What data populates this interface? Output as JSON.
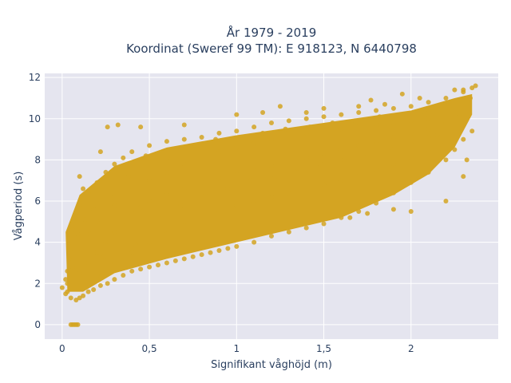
{
  "chart_data": {
    "type": "scatter",
    "title_line1": "År 1979 - 2019",
    "title_line2": "Koordinat (Sweref 99 TM): E 918123, N 6440798",
    "xlabel": "Signifikant våghöjd (m)",
    "ylabel": "Vågperiod (s)",
    "xlim": [
      -0.1,
      2.5
    ],
    "ylim": [
      -0.7,
      12.2
    ],
    "x_ticks": [
      {
        "value": 0,
        "label": "0"
      },
      {
        "value": 0.5,
        "label": "0,5"
      },
      {
        "value": 1,
        "label": "1"
      },
      {
        "value": 1.5,
        "label": "1,5"
      },
      {
        "value": 2,
        "label": "2"
      }
    ],
    "y_ticks": [
      {
        "value": 0,
        "label": "0"
      },
      {
        "value": 2,
        "label": "2"
      },
      {
        "value": 4,
        "label": "4"
      },
      {
        "value": 6,
        "label": "6"
      },
      {
        "value": 8,
        "label": "8"
      },
      {
        "value": 10,
        "label": "10"
      },
      {
        "value": 12,
        "label": "12"
      }
    ],
    "grid": true,
    "marker_color": "#d4a422",
    "background_color": "#e5e5ef",
    "series": [
      {
        "points": [
          [
            0.05,
            0.0
          ],
          [
            0.06,
            0.0
          ],
          [
            0.07,
            0.0
          ],
          [
            0.08,
            0.0
          ],
          [
            0.09,
            0.0
          ],
          [
            0.03,
            1.6
          ],
          [
            0.05,
            1.3
          ],
          [
            0.08,
            1.2
          ],
          [
            0.1,
            1.3
          ],
          [
            0.12,
            1.4
          ],
          [
            0.15,
            1.6
          ],
          [
            0.18,
            1.7
          ],
          [
            0.22,
            1.9
          ],
          [
            0.26,
            2.0
          ],
          [
            0.3,
            2.2
          ],
          [
            0.35,
            2.4
          ],
          [
            0.4,
            2.6
          ],
          [
            0.45,
            2.7
          ],
          [
            0.5,
            2.8
          ],
          [
            0.55,
            2.9
          ],
          [
            0.6,
            3.0
          ],
          [
            0.65,
            3.1
          ],
          [
            0.7,
            3.2
          ],
          [
            0.75,
            3.3
          ],
          [
            0.8,
            3.4
          ],
          [
            0.85,
            3.5
          ],
          [
            0.9,
            3.6
          ],
          [
            0.95,
            3.7
          ],
          [
            1.0,
            3.8
          ],
          [
            1.1,
            4.0
          ],
          [
            1.2,
            4.3
          ],
          [
            1.3,
            4.5
          ],
          [
            1.4,
            4.7
          ],
          [
            1.5,
            4.9
          ],
          [
            1.6,
            5.2
          ],
          [
            1.7,
            5.5
          ],
          [
            1.8,
            5.9
          ],
          [
            1.9,
            6.4
          ],
          [
            2.0,
            6.9
          ],
          [
            2.1,
            7.4
          ],
          [
            2.2,
            8.0
          ],
          [
            2.25,
            8.5
          ],
          [
            2.3,
            9.0
          ],
          [
            0.03,
            2.0
          ],
          [
            0.03,
            2.6
          ],
          [
            0.04,
            3.2
          ],
          [
            0.04,
            3.8
          ],
          [
            0.05,
            4.2
          ],
          [
            0.06,
            4.6
          ],
          [
            0.07,
            5.0
          ],
          [
            0.08,
            5.3
          ],
          [
            0.1,
            5.8
          ],
          [
            0.12,
            6.1
          ],
          [
            0.15,
            6.4
          ],
          [
            0.2,
            6.9
          ],
          [
            0.25,
            7.4
          ],
          [
            0.3,
            7.8
          ],
          [
            0.35,
            8.1
          ],
          [
            0.4,
            8.4
          ],
          [
            0.5,
            8.7
          ],
          [
            0.6,
            8.9
          ],
          [
            0.7,
            9.0
          ],
          [
            0.8,
            9.1
          ],
          [
            0.9,
            9.3
          ],
          [
            1.0,
            9.4
          ],
          [
            1.1,
            9.6
          ],
          [
            1.2,
            9.8
          ],
          [
            1.3,
            9.9
          ],
          [
            1.4,
            10.0
          ],
          [
            1.5,
            10.1
          ],
          [
            1.6,
            10.2
          ],
          [
            1.7,
            10.3
          ],
          [
            1.8,
            10.4
          ],
          [
            1.9,
            10.5
          ],
          [
            2.0,
            10.6
          ],
          [
            2.1,
            10.8
          ],
          [
            2.2,
            11.0
          ],
          [
            2.3,
            11.3
          ],
          [
            2.35,
            11.5
          ],
          [
            0.1,
            2.5
          ],
          [
            0.15,
            3.0
          ],
          [
            0.2,
            3.5
          ],
          [
            0.25,
            4.0
          ],
          [
            0.3,
            4.5
          ],
          [
            0.35,
            5.0
          ],
          [
            0.4,
            5.4
          ],
          [
            0.45,
            5.7
          ],
          [
            0.5,
            6.0
          ],
          [
            0.6,
            6.3
          ],
          [
            0.7,
            6.6
          ],
          [
            0.8,
            6.9
          ],
          [
            0.9,
            7.1
          ],
          [
            1.0,
            7.3
          ],
          [
            1.1,
            7.5
          ],
          [
            1.2,
            7.7
          ],
          [
            1.3,
            7.9
          ],
          [
            1.4,
            8.1
          ],
          [
            1.5,
            8.3
          ],
          [
            1.6,
            8.5
          ],
          [
            1.7,
            8.7
          ],
          [
            1.8,
            8.9
          ],
          [
            1.9,
            9.1
          ],
          [
            2.0,
            9.3
          ],
          [
            2.1,
            9.5
          ],
          [
            2.2,
            9.8
          ],
          [
            0.2,
            5.0
          ],
          [
            0.3,
            5.8
          ],
          [
            0.4,
            6.5
          ],
          [
            0.5,
            7.0
          ],
          [
            0.6,
            7.4
          ],
          [
            0.7,
            7.8
          ],
          [
            0.8,
            8.1
          ],
          [
            0.9,
            8.4
          ],
          [
            1.0,
            8.6
          ],
          [
            1.1,
            8.8
          ],
          [
            1.2,
            9.0
          ],
          [
            1.3,
            9.2
          ],
          [
            1.4,
            9.3
          ],
          [
            1.5,
            9.4
          ],
          [
            1.6,
            9.5
          ],
          [
            1.7,
            9.6
          ],
          [
            1.8,
            9.7
          ],
          [
            1.9,
            9.8
          ],
          [
            2.0,
            9.9
          ],
          [
            2.1,
            10.0
          ],
          [
            0.2,
            2.4
          ],
          [
            0.3,
            3.0
          ],
          [
            0.4,
            3.5
          ],
          [
            0.5,
            4.0
          ],
          [
            0.6,
            4.4
          ],
          [
            0.7,
            4.8
          ],
          [
            0.8,
            5.2
          ],
          [
            0.9,
            5.5
          ],
          [
            1.0,
            5.8
          ],
          [
            1.1,
            6.0
          ],
          [
            1.2,
            6.2
          ],
          [
            1.3,
            6.4
          ],
          [
            1.4,
            6.6
          ],
          [
            1.5,
            6.8
          ],
          [
            1.6,
            7.0
          ],
          [
            1.7,
            7.2
          ],
          [
            1.8,
            7.5
          ],
          [
            1.9,
            7.8
          ],
          [
            2.0,
            8.1
          ],
          [
            2.1,
            8.5
          ],
          [
            0.26,
            9.6
          ],
          [
            0.32,
            9.7
          ],
          [
            0.45,
            9.6
          ],
          [
            0.7,
            9.7
          ],
          [
            1.0,
            10.2
          ],
          [
            1.15,
            10.3
          ],
          [
            1.25,
            10.6
          ],
          [
            1.4,
            10.3
          ],
          [
            1.5,
            10.5
          ],
          [
            1.7,
            10.6
          ],
          [
            1.77,
            10.9
          ],
          [
            1.85,
            10.7
          ],
          [
            1.95,
            11.2
          ],
          [
            2.05,
            11.0
          ],
          [
            2.25,
            11.4
          ],
          [
            2.3,
            11.4
          ],
          [
            2.37,
            11.6
          ],
          [
            0.12,
            6.6
          ],
          [
            0.1,
            7.2
          ],
          [
            0.22,
            8.4
          ],
          [
            1.65,
            5.2
          ],
          [
            1.75,
            5.4
          ],
          [
            1.9,
            5.6
          ],
          [
            2.0,
            5.5
          ],
          [
            2.2,
            6.0
          ],
          [
            2.3,
            7.2
          ],
          [
            2.32,
            8.0
          ],
          [
            2.35,
            9.4
          ],
          [
            2.1,
            9.1
          ],
          [
            2.18,
            8.7
          ],
          [
            0.0,
            1.8
          ],
          [
            0.02,
            2.2
          ],
          [
            0.02,
            1.5
          ],
          [
            0.05,
            3.5
          ],
          [
            0.06,
            2.8
          ],
          [
            0.09,
            4.4
          ],
          [
            0.11,
            3.7
          ],
          [
            0.13,
            5.1
          ],
          [
            0.16,
            4.4
          ],
          [
            0.18,
            5.6
          ],
          [
            0.24,
            3.3
          ],
          [
            0.28,
            6.2
          ],
          [
            0.33,
            4.2
          ],
          [
            0.38,
            7.2
          ],
          [
            0.42,
            3.9
          ],
          [
            0.48,
            8.2
          ],
          [
            0.55,
            5.2
          ],
          [
            0.62,
            8.0
          ],
          [
            0.68,
            5.8
          ],
          [
            0.74,
            8.6
          ],
          [
            0.82,
            6.4
          ],
          [
            0.88,
            9.0
          ],
          [
            0.95,
            6.6
          ],
          [
            1.02,
            9.1
          ],
          [
            1.08,
            7.0
          ],
          [
            1.15,
            9.3
          ],
          [
            1.22,
            7.2
          ],
          [
            1.28,
            9.5
          ],
          [
            1.35,
            7.6
          ],
          [
            1.42,
            9.6
          ],
          [
            1.48,
            7.8
          ],
          [
            1.55,
            9.8
          ],
          [
            1.62,
            8.0
          ],
          [
            1.68,
            9.9
          ],
          [
            1.75,
            8.3
          ],
          [
            1.82,
            10.1
          ],
          [
            1.88,
            8.6
          ],
          [
            1.95,
            10.2
          ],
          [
            2.02,
            8.9
          ],
          [
            2.08,
            10.3
          ],
          [
            2.15,
            9.2
          ],
          [
            2.22,
            10.5
          ],
          [
            2.28,
            10.1
          ],
          [
            2.34,
            11.0
          ]
        ]
      }
    ]
  }
}
